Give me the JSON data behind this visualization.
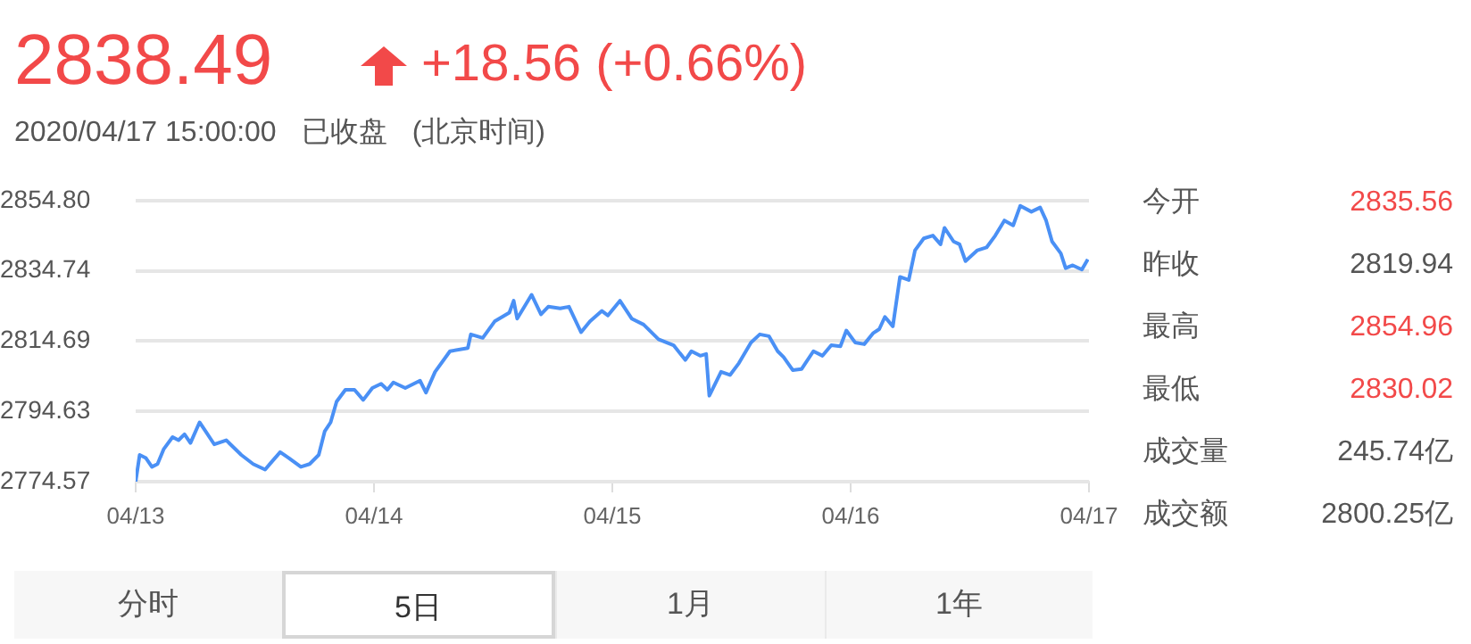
{
  "chart_data": {
    "type": "line",
    "title": "2838.49",
    "subtitle": "+18.56 (+0.66%)",
    "annotations": [
      "2020/04/17 15:00:00",
      "已收盘",
      "(北京时间)",
      "今开",
      "2835.56",
      "昨收",
      "2819.94",
      "最高",
      "2854.96",
      "最低",
      "2830.02",
      "成交量",
      "245.74亿",
      "成交额",
      "2800.25亿",
      "分时",
      "5日",
      "1月",
      "1年"
    ],
    "x": [
      "2020-04-13T00:00",
      "2020-04-13T00:24",
      "2020-04-13T01:02",
      "2020-04-13T01:38",
      "2020-04-13T02:12",
      "2020-04-13T02:50",
      "2020-04-13T03:43",
      "2020-04-13T04:19",
      "2020-04-13T04:55",
      "2020-04-13T05:31",
      "2020-04-13T06:26",
      "2020-04-13T07:02",
      "2020-04-13T07:55",
      "2020-04-13T09:07",
      "2020-04-13T10:38",
      "2020-04-13T11:50",
      "2020-04-13T13:02",
      "2020-04-13T13:38",
      "2020-04-13T14:33",
      "2020-04-13T15:26",
      "2020-04-13T16:38",
      "2020-04-13T17:31",
      "2020-04-13T18:26",
      "2020-04-13T19:02",
      "2020-04-13T19:38",
      "2020-04-13T20:14",
      "2020-04-13T21:07",
      "2020-04-13T22:02",
      "2020-04-13T22:55",
      "2020-04-13T23:50",
      "2020-04-14T00:43",
      "2020-04-14T01:21",
      "2020-04-14T01:57",
      "2020-04-14T03:09",
      "2020-04-14T04:38",
      "2020-04-14T05:14",
      "2020-04-14T06:09",
      "2020-04-14T07:39",
      "2020-04-14T09:27",
      "2020-04-14T09:45",
      "2020-04-14T10:57",
      "2020-04-14T12:09",
      "2020-04-14T13:38",
      "2020-04-14T14:04",
      "2020-04-14T14:25",
      "2020-04-14T15:52",
      "2020-04-14T16:49",
      "2020-04-14T17:33",
      "2020-04-14T18:45",
      "2020-04-14T19:38",
      "2020-04-14T20:51",
      "2020-04-14T21:45",
      "2020-04-14T22:57",
      "2020-04-14T23:33",
      "2020-04-15T00:46",
      "2020-04-15T01:57",
      "2020-04-15T03:09",
      "2020-04-15T04:39",
      "2020-04-15T06:10",
      "2020-04-15T07:21",
      "2020-04-15T07:58",
      "2020-04-15T08:51",
      "2020-04-15T09:27",
      "2020-04-15T09:46",
      "2020-04-15T10:57",
      "2020-04-15T11:51",
      "2020-04-15T12:45",
      "2020-04-15T13:58",
      "2020-04-15T14:51",
      "2020-04-15T15:46",
      "2020-04-15T16:39",
      "2020-04-15T17:15",
      "2020-04-15T18:10",
      "2020-04-15T19:03",
      "2020-04-15T20:15",
      "2020-04-15T21:10",
      "2020-04-15T22:03",
      "2020-04-15T22:58",
      "2020-04-15T23:34",
      "2020-04-16T00:27",
      "2020-04-16T01:22",
      "2020-04-16T02:15",
      "2020-04-16T02:53",
      "2020-04-16T03:27",
      "2020-04-16T04:15",
      "2020-04-16T04:58",
      "2020-04-16T05:51",
      "2020-04-16T06:29",
      "2020-04-16T07:22",
      "2020-04-16T08:17",
      "2020-04-16T09:03",
      "2020-04-16T09:27",
      "2020-04-16T10:22",
      "2020-04-16T10:58",
      "2020-04-16T11:34",
      "2020-04-16T12:46",
      "2020-04-16T13:41",
      "2020-04-16T14:34",
      "2020-04-16T15:29",
      "2020-04-16T16:22",
      "2020-04-16T17:05",
      "2020-04-16T18:12",
      "2020-04-16T19:05",
      "2020-04-16T19:41",
      "2020-04-16T20:17",
      "2020-04-16T21:10",
      "2020-04-16T21:39",
      "2020-04-16T22:22",
      "2020-04-16T23:17",
      "2020-04-16T23:53"
    ],
    "series": [
      {
        "color": "#4a90f5",
        "values": [
          2774.6,
          2782.2,
          2781.3,
          2778.8,
          2779.6,
          2783.9,
          2787.3,
          2786.4,
          2788.1,
          2785.6,
          2791.5,
          2789.0,
          2785.2,
          2786.4,
          2782.2,
          2779.6,
          2778.0,
          2780.0,
          2783.0,
          2781.3,
          2778.8,
          2779.6,
          2782.2,
          2788.9,
          2791.5,
          2797.4,
          2800.8,
          2800.8,
          2797.9,
          2801.3,
          2802.5,
          2800.8,
          2802.9,
          2801.3,
          2803.4,
          2800.0,
          2805.9,
          2811.8,
          2812.7,
          2816.6,
          2815.6,
          2820.3,
          2822.8,
          2826.2,
          2821.1,
          2827.9,
          2822.3,
          2824.5,
          2824.0,
          2824.5,
          2817.2,
          2820.3,
          2823.3,
          2822.0,
          2826.2,
          2821.1,
          2819.4,
          2815.2,
          2813.5,
          2809.3,
          2811.8,
          2810.5,
          2811.0,
          2799.1,
          2805.9,
          2805.0,
          2808.4,
          2814.3,
          2816.6,
          2816.1,
          2811.8,
          2810.1,
          2806.4,
          2806.7,
          2811.8,
          2810.5,
          2813.5,
          2813.2,
          2817.7,
          2814.3,
          2813.8,
          2816.9,
          2818.1,
          2821.6,
          2818.9,
          2833.0,
          2832.1,
          2840.6,
          2844.0,
          2844.8,
          2842.3,
          2847.0,
          2843.1,
          2842.3,
          2837.5,
          2840.6,
          2841.4,
          2844.8,
          2849.1,
          2847.7,
          2853.3,
          2851.6,
          2852.8,
          2849.1,
          2843.1,
          2839.7,
          2835.5,
          2836.3,
          2835.1,
          2838.0
        ]
      }
    ],
    "xlim": [
      "2020-04-13",
      "2020-04-17"
    ],
    "xticks": [
      {
        "value": "2020-04-13",
        "label": "04/13"
      },
      {
        "value": "2020-04-14",
        "label": "04/14"
      },
      {
        "value": "2020-04-15",
        "label": "04/15"
      },
      {
        "value": "2020-04-16",
        "label": "04/16"
      },
      {
        "value": "2020-04-17",
        "label": "04/17"
      }
    ],
    "ylim": [
      2774.57,
      2854.8
    ],
    "yticks": [
      2774.57,
      2794.63,
      2814.69,
      2834.74,
      {
        "value": 2854.8,
        "label": "2854.80"
      }
    ],
    "grid": "y",
    "legend": false,
    "marker": "none",
    "line_style": "solid"
  }
}
